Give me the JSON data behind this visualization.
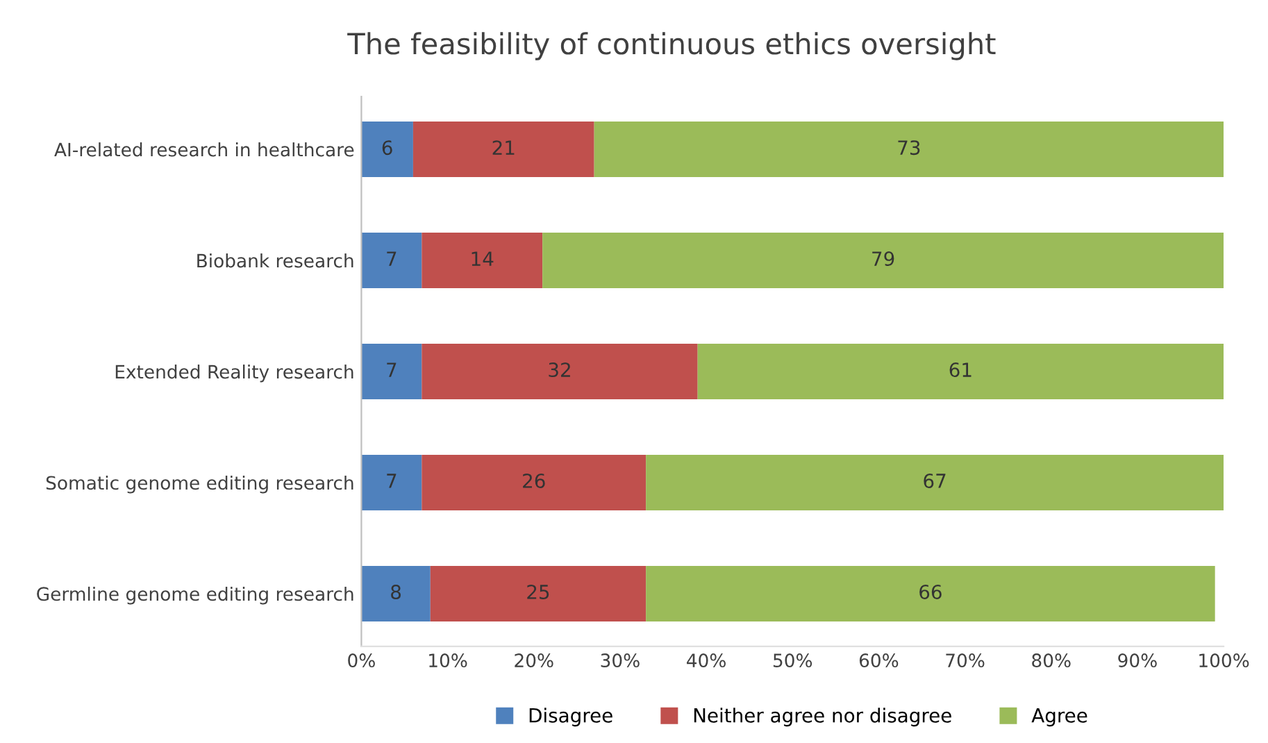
{
  "chart_data": {
    "type": "bar",
    "orientation": "horizontal",
    "stacked": true,
    "title": "The feasibility of continuous ethics oversight",
    "categories": [
      "AI-related research in healthcare",
      "Biobank research",
      "Extended Reality research",
      "Somatic genome editing research",
      "Germline genome editing research"
    ],
    "series": [
      {
        "name": "Disagree",
        "color": "#4f81bd",
        "values": [
          6,
          7,
          7,
          7,
          8
        ]
      },
      {
        "name": "Neither agree nor disagree",
        "color": "#c0504d",
        "values": [
          21,
          14,
          32,
          26,
          25
        ]
      },
      {
        "name": "Agree",
        "color": "#9bbb59",
        "values": [
          73,
          79,
          61,
          67,
          66
        ]
      }
    ],
    "xlim": [
      0,
      100
    ],
    "xticks": [
      {
        "value": 0,
        "label": "0%"
      },
      {
        "value": 10,
        "label": "10%"
      },
      {
        "value": 20,
        "label": "20%"
      },
      {
        "value": 30,
        "label": "30%"
      },
      {
        "value": 40,
        "label": "40%"
      },
      {
        "value": 50,
        "label": "50%"
      },
      {
        "value": 60,
        "label": "60%"
      },
      {
        "value": 70,
        "label": "70%"
      },
      {
        "value": 80,
        "label": "80%"
      },
      {
        "value": 90,
        "label": "90%"
      },
      {
        "value": 100,
        "label": "100%"
      }
    ],
    "data_labels": true,
    "legend": "bottom",
    "grid": false
  }
}
